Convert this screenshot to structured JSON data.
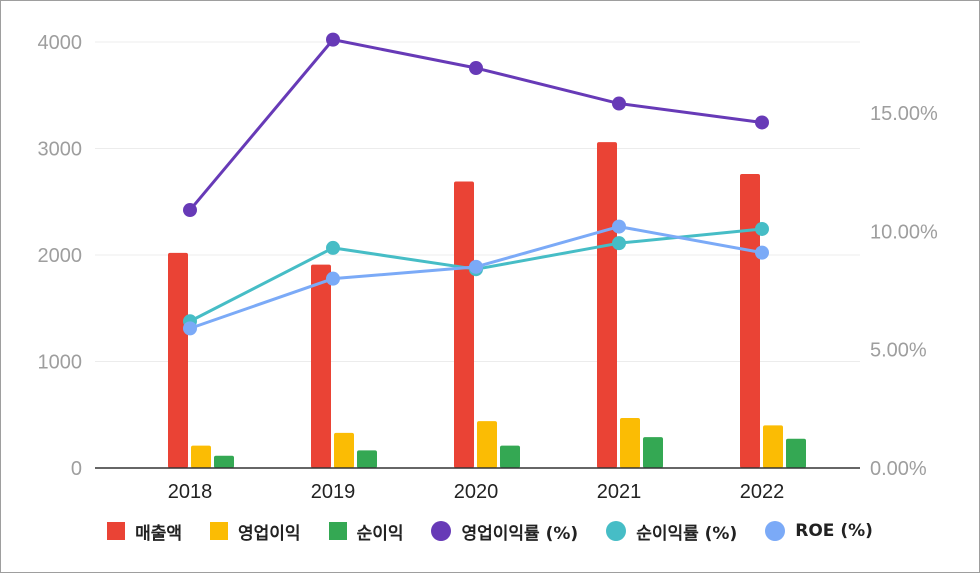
{
  "chart_data": {
    "type": "bar",
    "categories": [
      "2018",
      "2019",
      "2020",
      "2021",
      "2022"
    ],
    "y_left": {
      "ylim": [
        0,
        4000
      ],
      "ticks": [
        "0",
        "1000",
        "2000",
        "3000",
        "4000"
      ]
    },
    "y_right": {
      "ylim": [
        0,
        18
      ],
      "ticks": [
        "0.00%",
        "5.00%",
        "10.00%",
        "15.00%"
      ]
    },
    "bar_series": [
      {
        "name": "매출액",
        "color": "#ea4335",
        "values": [
          2020,
          1910,
          2690,
          3060,
          2760
        ]
      },
      {
        "name": "영업이익",
        "color": "#fbbc04",
        "values": [
          210,
          330,
          440,
          470,
          400
        ]
      },
      {
        "name": "순이익",
        "color": "#34a853",
        "values": [
          115,
          165,
          210,
          290,
          275
        ]
      }
    ],
    "line_series": [
      {
        "name": "영업이익률 (%)",
        "color": "#673ab7",
        "values": [
          10.9,
          18.1,
          16.9,
          15.4,
          14.6
        ]
      },
      {
        "name": "순이익률 (%)",
        "color": "#46bdc6",
        "values": [
          6.2,
          9.3,
          8.4,
          9.5,
          10.1
        ]
      },
      {
        "name": "ROE (%)",
        "color": "#7baaf7",
        "values": [
          5.9,
          8.0,
          8.5,
          10.2,
          9.1
        ]
      }
    ],
    "grid": true,
    "legend_position": "bottom"
  }
}
